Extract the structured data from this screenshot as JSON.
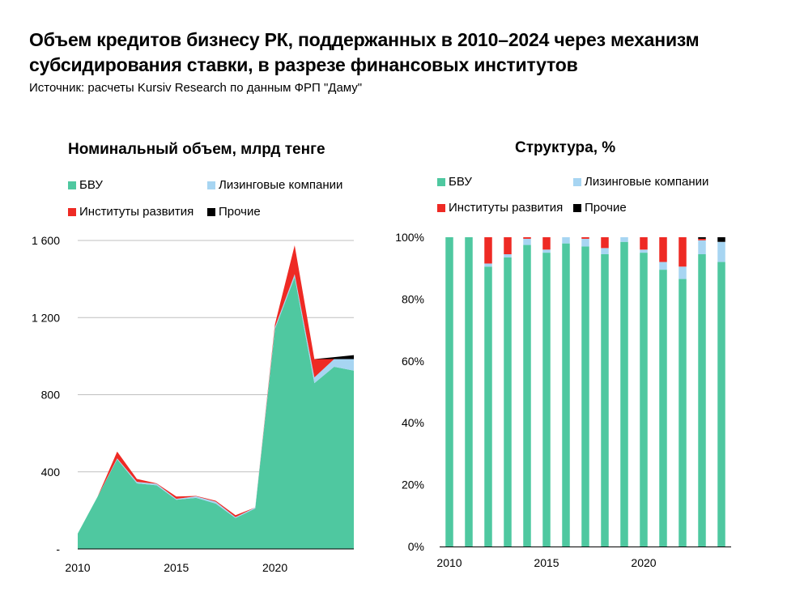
{
  "title_line1": "Объем кредитов бизнесу РК, поддержанных в 2010–2024 через механизм",
  "title_line2": "субсидирования ставки, в разрезе финансовых институтов",
  "source": "Источник: расчеты Kursiv Research по данным ФРП \"Даму\"",
  "colors": {
    "bvu": "#4fc8a0",
    "leasing": "#a7d5f2",
    "development": "#ee2a24",
    "other": "#000000",
    "grid": "#bfbfbf"
  },
  "legend": [
    "БВУ",
    "Лизинговые компании",
    "Институты развития",
    "Прочие"
  ],
  "chart_data": [
    {
      "type": "area",
      "stacked": true,
      "title": "Номинальный объем, млрд тенге",
      "x": [
        2010,
        2011,
        2012,
        2013,
        2014,
        2015,
        2016,
        2017,
        2018,
        2019,
        2020,
        2021,
        2022,
        2023,
        2024
      ],
      "x_tick_labels": [
        "2010",
        "2015",
        "2020"
      ],
      "y_tick_labels": [
        "-",
        "400",
        "800",
        "1 200",
        "1 600"
      ],
      "ylim": [
        0,
        1600
      ],
      "grid": true,
      "legend_position": "top",
      "series": [
        {
          "name": "БВУ",
          "values": [
            80,
            270,
            465,
            340,
            330,
            255,
            265,
            235,
            160,
            210,
            1140,
            1410,
            860,
            945,
            925
          ]
        },
        {
          "name": "Лизинговые компании",
          "values": [
            0,
            0,
            5,
            8,
            8,
            5,
            8,
            10,
            5,
            5,
            10,
            15,
            30,
            40,
            60
          ]
        },
        {
          "name": "Институты развития",
          "values": [
            0,
            0,
            35,
            15,
            2,
            12,
            2,
            5,
            10,
            0,
            15,
            150,
            95,
            0,
            0
          ]
        },
        {
          "name": "Прочие",
          "values": [
            0,
            0,
            0,
            0,
            0,
            0,
            0,
            0,
            0,
            0,
            0,
            0,
            0,
            10,
            20
          ]
        }
      ]
    },
    {
      "type": "bar",
      "stacked": true,
      "title": "Структура, %",
      "x": [
        2010,
        2011,
        2012,
        2013,
        2014,
        2015,
        2016,
        2017,
        2018,
        2019,
        2020,
        2021,
        2022,
        2023,
        2024
      ],
      "x_tick_labels": [
        "2010",
        "2015",
        "2020"
      ],
      "y_tick_labels": [
        "0%",
        "20%",
        "40%",
        "60%",
        "80%",
        "100%"
      ],
      "ylim": [
        0,
        100
      ],
      "grid": false,
      "legend_position": "top",
      "series": [
        {
          "name": "БВУ",
          "values": [
            100,
            100,
            90.5,
            93.5,
            97.5,
            95,
            98,
            97,
            94.5,
            98.5,
            95,
            89.5,
            86.5,
            94.5,
            92
          ]
        },
        {
          "name": "Лизинговые компании",
          "values": [
            0,
            0,
            1,
            1,
            2,
            1,
            2,
            2.5,
            2,
            1.5,
            1,
            2.5,
            4,
            4.5,
            6.5
          ]
        },
        {
          "name": "Институты развития",
          "values": [
            0,
            0,
            8.5,
            5.5,
            0.5,
            4,
            0,
            0.5,
            3.5,
            0,
            4,
            8,
            9.5,
            0.5,
            0
          ]
        },
        {
          "name": "Прочие",
          "values": [
            0,
            0,
            0,
            0,
            0,
            0,
            0,
            0,
            0,
            0,
            0,
            0,
            0,
            0.5,
            1.5
          ]
        }
      ]
    }
  ]
}
